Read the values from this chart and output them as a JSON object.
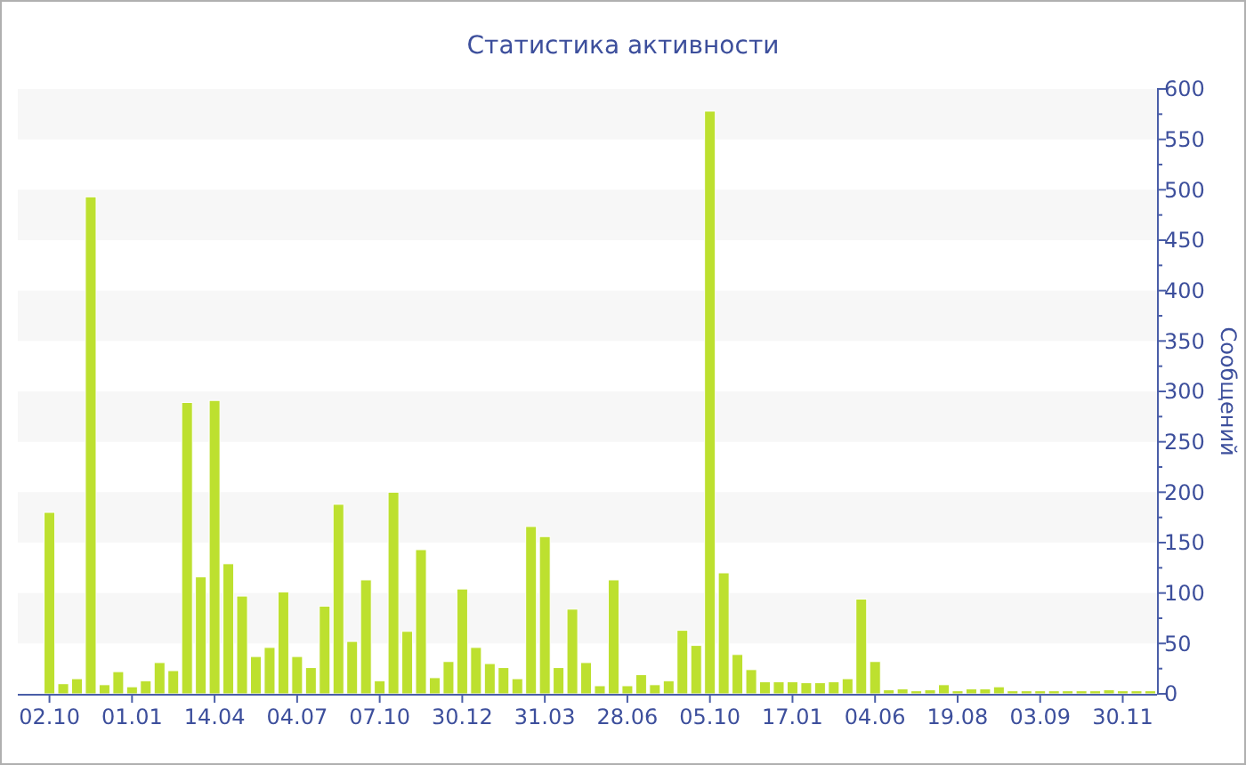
{
  "chart_data": {
    "type": "bar",
    "title": "Статистика активности",
    "ylabel": "Сообщений",
    "categories": [
      "02.10",
      null,
      null,
      null,
      null,
      null,
      "01.01",
      null,
      null,
      null,
      null,
      null,
      "14.04",
      null,
      null,
      null,
      null,
      null,
      "04.07",
      null,
      null,
      null,
      null,
      null,
      "07.10",
      null,
      null,
      null,
      null,
      null,
      "30.12",
      null,
      null,
      null,
      null,
      null,
      "31.03",
      null,
      null,
      null,
      null,
      null,
      "28.06",
      null,
      null,
      null,
      null,
      null,
      "05.10",
      null,
      null,
      null,
      null,
      null,
      "17.01",
      null,
      null,
      null,
      null,
      null,
      "04.06",
      null,
      null,
      null,
      null,
      null,
      "19.08",
      null,
      null,
      null,
      null,
      null,
      "03.09",
      null,
      null,
      null,
      null,
      null,
      "30.11",
      null,
      null
    ],
    "values": [
      180,
      10,
      15,
      493,
      9,
      22,
      7,
      13,
      31,
      23,
      289,
      116,
      291,
      129,
      97,
      37,
      46,
      101,
      37,
      26,
      87,
      188,
      52,
      113,
      13,
      200,
      62,
      143,
      16,
      32,
      104,
      46,
      30,
      26,
      15,
      166,
      156,
      26,
      84,
      31,
      8,
      113,
      8,
      19,
      9,
      13,
      63,
      48,
      578,
      120,
      39,
      24,
      12,
      12,
      12,
      11,
      11,
      12,
      15,
      94,
      32,
      4,
      5,
      3,
      4,
      9,
      3,
      5,
      5,
      7,
      3,
      3,
      3,
      3,
      3,
      3,
      3,
      4,
      3,
      3,
      3
    ],
    "color": "#bde02f",
    "ylim": [
      0,
      600
    ],
    "yticks": [
      0,
      {
        "value": 25,
        "label": null
      },
      50,
      {
        "value": 75,
        "label": null
      },
      100,
      {
        "value": 125,
        "label": null
      },
      150,
      {
        "value": 175,
        "label": null
      },
      200,
      {
        "value": 225,
        "label": null
      },
      250,
      {
        "value": 275,
        "label": null
      },
      300,
      {
        "value": 325,
        "label": null
      },
      350,
      {
        "value": 375,
        "label": null
      },
      400,
      {
        "value": 425,
        "label": null
      },
      450,
      {
        "value": 475,
        "label": null
      },
      500,
      {
        "value": 525,
        "label": null
      },
      550,
      {
        "value": 575,
        "label": null
      },
      600
    ],
    "bands": [
      {
        "axis": "y",
        "from": 50,
        "to": 100,
        "color": "#f7f7f7"
      },
      {
        "axis": "y",
        "from": 150,
        "to": 200,
        "color": "#f7f7f7"
      },
      {
        "axis": "y",
        "from": 250,
        "to": 300,
        "color": "#f7f7f7"
      },
      {
        "axis": "y",
        "from": 350,
        "to": 400,
        "color": "#f7f7f7"
      },
      {
        "axis": "y",
        "from": 450,
        "to": 500,
        "color": "#f7f7f7"
      },
      {
        "axis": "y",
        "from": 550,
        "to": 600,
        "color": "#f7f7f7"
      }
    ]
  }
}
